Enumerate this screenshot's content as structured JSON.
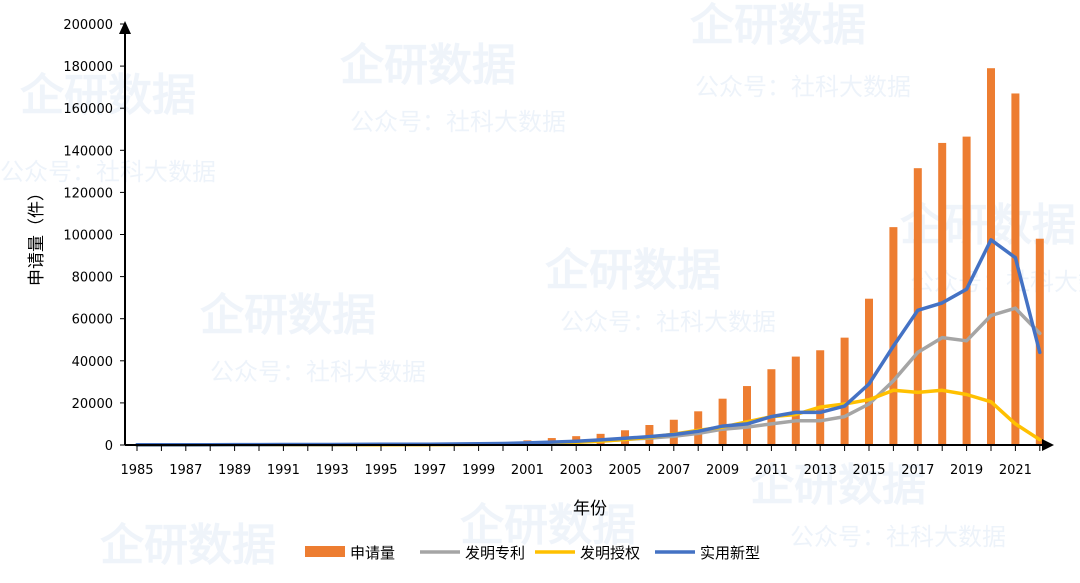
{
  "chart_data": {
    "type": "bar",
    "title": "",
    "xlabel": "年份",
    "ylabel": "申请量（件）",
    "ylim": [
      0,
      200000
    ],
    "yticks": [
      0,
      20000,
      40000,
      60000,
      80000,
      100000,
      120000,
      140000,
      160000,
      180000,
      200000
    ],
    "x": [
      1985,
      1986,
      1987,
      1988,
      1989,
      1990,
      1991,
      1992,
      1993,
      1994,
      1995,
      1996,
      1997,
      1998,
      1999,
      2000,
      2001,
      2002,
      2003,
      2004,
      2005,
      2006,
      2007,
      2008,
      2009,
      2010,
      2011,
      2012,
      2013,
      2014,
      2015,
      2016,
      2017,
      2018,
      2019,
      2020,
      2021,
      2022
    ],
    "xtick_labels": [
      "1985",
      "1987",
      "1989",
      "1991",
      "1993",
      "1995",
      "1997",
      "1999",
      "2001",
      "2003",
      "2005",
      "2007",
      "2009",
      "2011",
      "2013",
      "2015",
      "2017",
      "2019",
      "2021"
    ],
    "series": [
      {
        "name": "申请量",
        "kind": "bar",
        "color": "#ed7d31",
        "values": [
          150,
          180,
          200,
          220,
          240,
          260,
          290,
          320,
          360,
          400,
          450,
          500,
          560,
          650,
          800,
          1300,
          2200,
          3300,
          4200,
          5300,
          7000,
          9500,
          12000,
          16000,
          22000,
          28000,
          36000,
          42000,
          45000,
          51000,
          69500,
          103500,
          131500,
          143500,
          146500,
          179000,
          167000,
          98000
        ]
      },
      {
        "name": "发明专利",
        "kind": "line",
        "color": "#a5a5a5",
        "values": [
          50,
          60,
          70,
          80,
          90,
          100,
          110,
          120,
          130,
          150,
          170,
          200,
          240,
          290,
          360,
          500,
          700,
          1000,
          1400,
          1900,
          2600,
          3300,
          4200,
          5500,
          7500,
          8500,
          10000,
          11500,
          11500,
          13500,
          19500,
          30500,
          44000,
          51000,
          49500,
          61500,
          65000,
          53000
        ]
      },
      {
        "name": "发明授权",
        "kind": "line",
        "color": "#ffc000",
        "values": [
          40,
          50,
          60,
          70,
          80,
          90,
          100,
          110,
          120,
          130,
          150,
          170,
          200,
          240,
          290,
          400,
          600,
          900,
          1300,
          1800,
          2600,
          3600,
          5200,
          7000,
          8500,
          11000,
          13500,
          14500,
          18000,
          19500,
          21500,
          26000,
          25000,
          26000,
          24000,
          20500,
          10000,
          2500
        ]
      },
      {
        "name": "实用新型",
        "kind": "line",
        "color": "#4472c4",
        "values": [
          100,
          120,
          140,
          160,
          180,
          200,
          220,
          240,
          260,
          290,
          320,
          360,
          400,
          460,
          550,
          700,
          1000,
          1400,
          1800,
          2400,
          3200,
          4000,
          5000,
          6500,
          9000,
          10000,
          13500,
          15500,
          15500,
          18500,
          29000,
          47000,
          64000,
          67500,
          74000,
          97500,
          89000,
          44000
        ]
      }
    ],
    "legend_position": "bottom"
  },
  "watermarks": {
    "brand": "企研数据",
    "sub": "公众号：社科大数据"
  }
}
